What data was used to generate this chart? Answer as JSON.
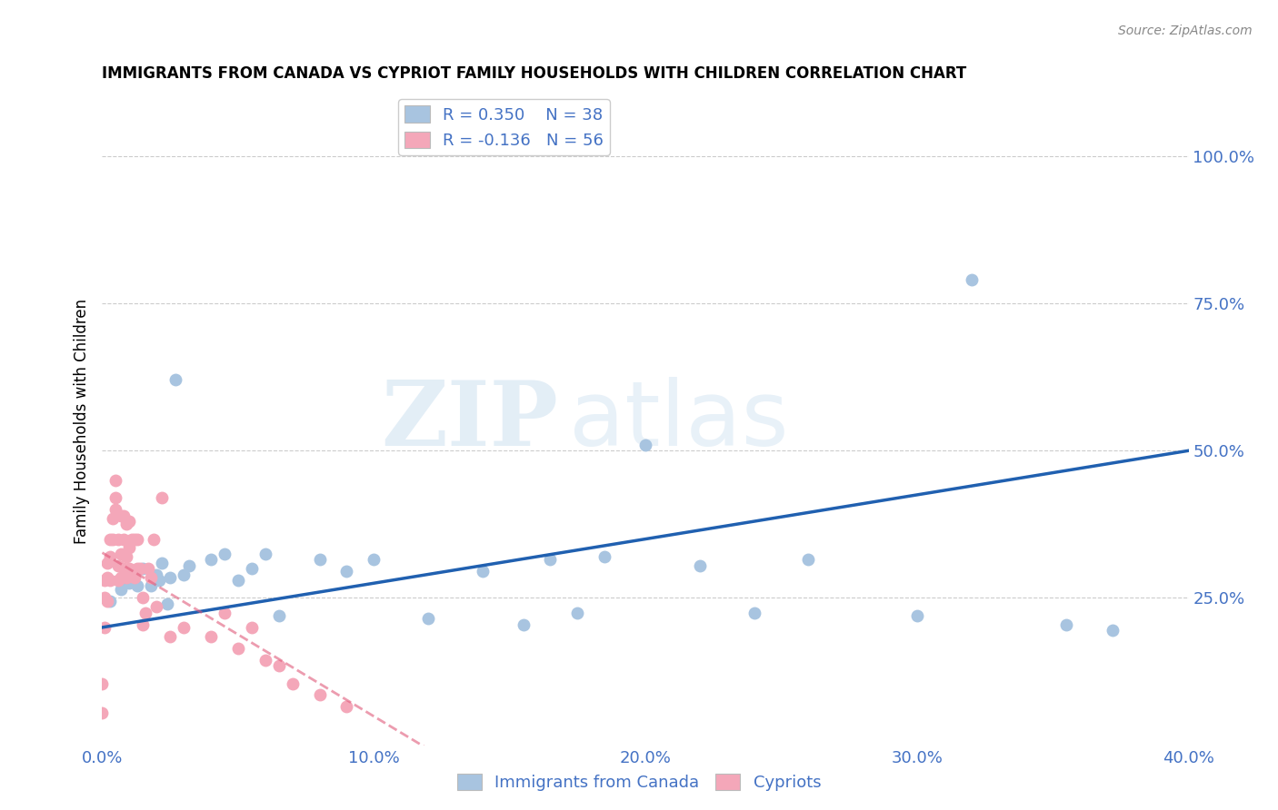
{
  "title": "IMMIGRANTS FROM CANADA VS CYPRIOT FAMILY HOUSEHOLDS WITH CHILDREN CORRELATION CHART",
  "source": "Source: ZipAtlas.com",
  "ylabel": "Family Households with Children",
  "xlim": [
    0.0,
    0.4
  ],
  "ylim": [
    0.0,
    1.1
  ],
  "xtick_labels": [
    "0.0%",
    "10.0%",
    "20.0%",
    "30.0%",
    "40.0%"
  ],
  "xtick_vals": [
    0.0,
    0.1,
    0.2,
    0.3,
    0.4
  ],
  "ytick_labels": [
    "25.0%",
    "50.0%",
    "75.0%",
    "100.0%"
  ],
  "ytick_vals": [
    0.25,
    0.5,
    0.75,
    1.0
  ],
  "blue_R": 0.35,
  "blue_N": 38,
  "pink_R": -0.136,
  "pink_N": 56,
  "blue_color": "#a8c4e0",
  "blue_line_color": "#2060b0",
  "pink_color": "#f4a7b9",
  "pink_line_color": "#e05a7a",
  "label_color": "#4472c4",
  "watermark_color": "#cce0f0",
  "blue_x": [
    0.003,
    0.007,
    0.01,
    0.011,
    0.013,
    0.015,
    0.018,
    0.02,
    0.021,
    0.022,
    0.024,
    0.025,
    0.027,
    0.03,
    0.032,
    0.04,
    0.045,
    0.05,
    0.055,
    0.06,
    0.065,
    0.08,
    0.09,
    0.1,
    0.12,
    0.14,
    0.155,
    0.165,
    0.175,
    0.185,
    0.2,
    0.22,
    0.24,
    0.26,
    0.3,
    0.32,
    0.355,
    0.372
  ],
  "blue_y": [
    0.245,
    0.265,
    0.275,
    0.295,
    0.27,
    0.3,
    0.27,
    0.29,
    0.28,
    0.31,
    0.24,
    0.285,
    0.62,
    0.29,
    0.305,
    0.315,
    0.325,
    0.28,
    0.3,
    0.325,
    0.22,
    0.315,
    0.295,
    0.315,
    0.215,
    0.295,
    0.205,
    0.315,
    0.225,
    0.32,
    0.51,
    0.305,
    0.225,
    0.315,
    0.22,
    0.79,
    0.205,
    0.195
  ],
  "pink_x": [
    0.0,
    0.0,
    0.001,
    0.001,
    0.001,
    0.002,
    0.002,
    0.002,
    0.003,
    0.003,
    0.003,
    0.004,
    0.004,
    0.005,
    0.005,
    0.005,
    0.006,
    0.006,
    0.006,
    0.007,
    0.007,
    0.007,
    0.008,
    0.008,
    0.008,
    0.009,
    0.009,
    0.009,
    0.01,
    0.01,
    0.01,
    0.011,
    0.012,
    0.012,
    0.013,
    0.013,
    0.014,
    0.015,
    0.015,
    0.016,
    0.017,
    0.018,
    0.019,
    0.02,
    0.022,
    0.025,
    0.03,
    0.04,
    0.045,
    0.05,
    0.055,
    0.06,
    0.065,
    0.07,
    0.08,
    0.09
  ],
  "pink_y": [
    0.055,
    0.105,
    0.2,
    0.25,
    0.28,
    0.245,
    0.285,
    0.31,
    0.28,
    0.32,
    0.35,
    0.35,
    0.385,
    0.4,
    0.42,
    0.45,
    0.28,
    0.305,
    0.35,
    0.285,
    0.325,
    0.39,
    0.3,
    0.35,
    0.39,
    0.285,
    0.32,
    0.375,
    0.3,
    0.335,
    0.38,
    0.35,
    0.285,
    0.35,
    0.3,
    0.35,
    0.3,
    0.205,
    0.25,
    0.225,
    0.3,
    0.285,
    0.35,
    0.235,
    0.42,
    0.185,
    0.2,
    0.185,
    0.225,
    0.165,
    0.2,
    0.145,
    0.135,
    0.105,
    0.085,
    0.065
  ]
}
